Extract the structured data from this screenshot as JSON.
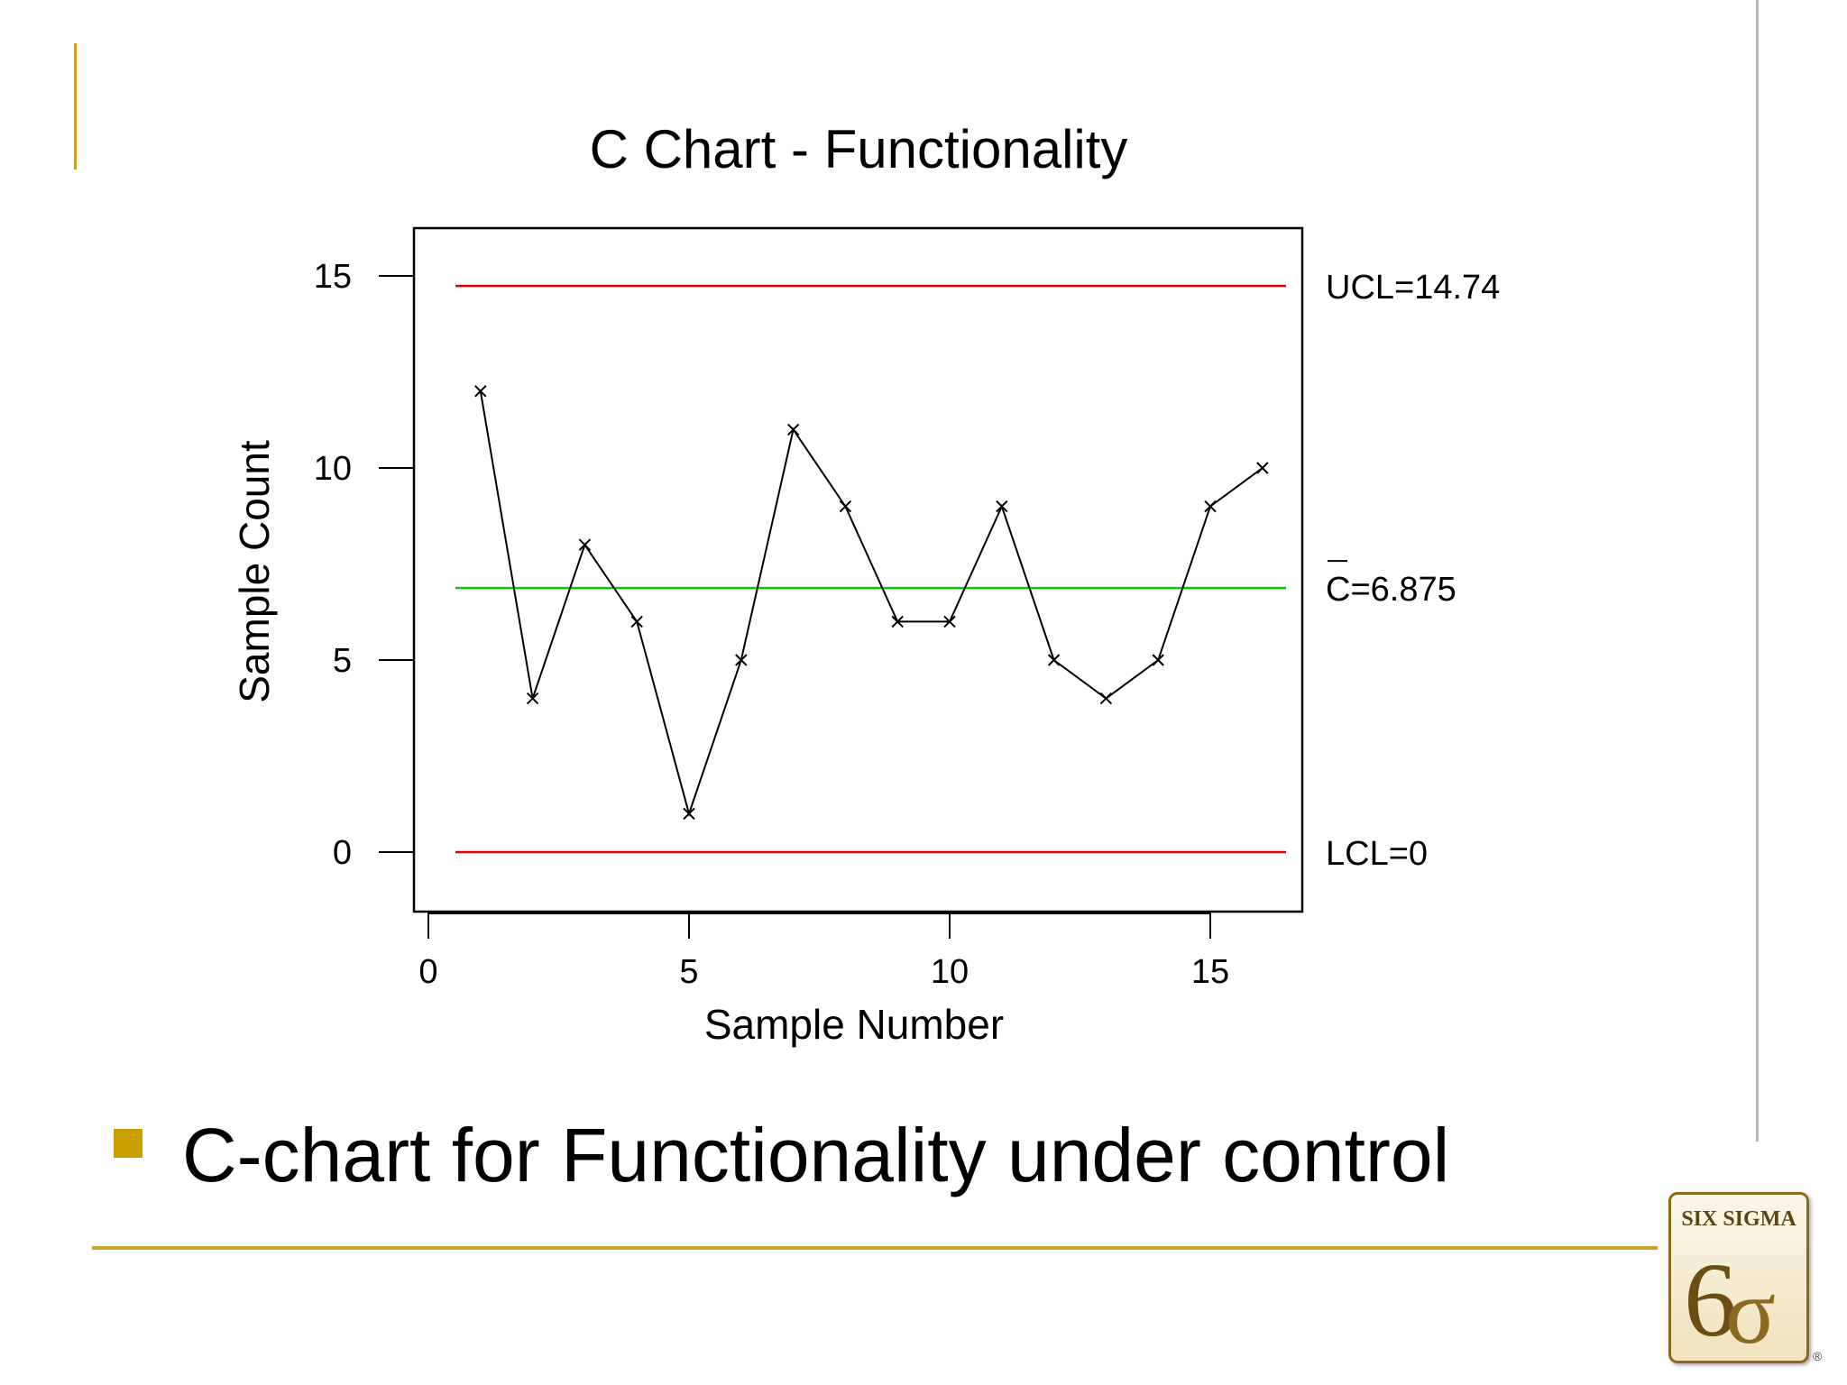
{
  "slide": {
    "bullet_text": "C-chart for Functionality under control",
    "accent_color": "#c9a227",
    "logo": {
      "text": "SIX SIGMA",
      "symbol": "6σ"
    }
  },
  "chart_data": {
    "type": "line",
    "title": "C Chart - Functionality",
    "xlabel": "Sample Number",
    "ylabel": "Sample Count",
    "x": [
      1,
      2,
      3,
      4,
      5,
      6,
      7,
      8,
      9,
      10,
      11,
      12,
      13,
      14,
      15,
      16
    ],
    "values": [
      12,
      4,
      8,
      6,
      1,
      5,
      11,
      9,
      6,
      6,
      9,
      5,
      4,
      5,
      9,
      10
    ],
    "xlim": [
      0,
      16
    ],
    "ylim": [
      -1.5,
      16.3
    ],
    "xticks": [
      "0",
      "5",
      "10",
      "15"
    ],
    "yticks": [
      "0",
      "5",
      "10",
      "15"
    ],
    "marker": "x",
    "series_color": "#000000",
    "control_lines": [
      {
        "label": "UCL=14.74",
        "value": 14.74,
        "color": "#e00000"
      },
      {
        "label": "C=6.875",
        "value": 6.875,
        "color": "#00cc00",
        "overbar": true
      },
      {
        "label": "LCL=0",
        "value": 0,
        "color": "#e00000"
      }
    ],
    "grid": false,
    "legend": "none"
  }
}
